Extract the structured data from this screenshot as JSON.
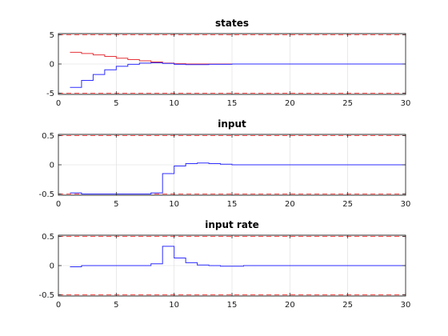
{
  "colors": {
    "bound": "#ff4d4d",
    "state_red": "#e6333a",
    "state_blue": "#2e2eff",
    "input_blue": "#2e2eff"
  },
  "chart_data": [
    {
      "type": "line",
      "title": "states",
      "xlim": [
        0,
        30
      ],
      "ylim": [
        -5.2,
        5.2
      ],
      "xticks": [
        0,
        5,
        10,
        15,
        20,
        25,
        30
      ],
      "yticks": [
        -5,
        0,
        5
      ],
      "ytick_labels": [
        "-5",
        "0",
        "5"
      ],
      "grid": true,
      "step": true,
      "bounds": [
        5,
        -5
      ],
      "series": [
        {
          "color": "#e6333a",
          "x": [
            1,
            2,
            3,
            4,
            5,
            6,
            7,
            8,
            9,
            10,
            11,
            12,
            13,
            14,
            15,
            16,
            17,
            18,
            19,
            20,
            21,
            22,
            23,
            24,
            25,
            26,
            27,
            28,
            29,
            30
          ],
          "y": [
            2.0,
            1.8,
            1.55,
            1.3,
            1.0,
            0.75,
            0.55,
            0.35,
            0.15,
            0.05,
            0.0,
            0.0,
            0.0,
            0.0,
            0.0,
            0.0,
            0.0,
            0.0,
            0.0,
            0.0,
            0.0,
            0.0,
            0.0,
            0.0,
            0.0,
            0.0,
            0.0,
            0.0,
            0.0,
            0.0
          ]
        },
        {
          "color": "#2e2eff",
          "x": [
            1,
            2,
            3,
            4,
            5,
            6,
            7,
            8,
            9,
            10,
            11,
            12,
            13,
            14,
            15,
            16,
            17,
            18,
            19,
            20,
            21,
            22,
            23,
            24,
            25,
            26,
            27,
            28,
            29,
            30
          ],
          "y": [
            -4.0,
            -2.8,
            -1.8,
            -1.0,
            -0.4,
            -0.05,
            0.15,
            0.2,
            0.1,
            -0.05,
            -0.1,
            -0.1,
            -0.05,
            -0.05,
            0.0,
            0.0,
            0.0,
            0.0,
            0.0,
            0.0,
            0.0,
            0.0,
            0.0,
            0.0,
            0.0,
            0.0,
            0.0,
            0.0,
            0.0,
            0.0
          ]
        }
      ]
    },
    {
      "type": "line",
      "title": "input",
      "xlim": [
        0,
        30
      ],
      "ylim": [
        -0.52,
        0.52
      ],
      "xticks": [
        0,
        5,
        10,
        15,
        20,
        25,
        30
      ],
      "yticks": [
        -0.5,
        0,
        0.5
      ],
      "ytick_labels": [
        "-0.5",
        "0",
        "0.5"
      ],
      "grid": true,
      "step": true,
      "bounds": [
        0.5,
        -0.5
      ],
      "series": [
        {
          "color": "#2e2eff",
          "x": [
            1,
            2,
            3,
            4,
            5,
            6,
            7,
            8,
            9,
            10,
            11,
            12,
            13,
            14,
            15,
            16,
            17,
            18,
            19,
            20,
            21,
            22,
            23,
            24,
            25,
            26,
            27,
            28,
            29,
            30
          ],
          "y": [
            -0.48,
            -0.5,
            -0.5,
            -0.5,
            -0.5,
            -0.5,
            -0.5,
            -0.48,
            -0.15,
            -0.02,
            0.02,
            0.03,
            0.02,
            0.01,
            0.0,
            0.0,
            0.0,
            0.0,
            0.0,
            0.0,
            0.0,
            0.0,
            0.0,
            0.0,
            0.0,
            0.0,
            0.0,
            0.0,
            0.0,
            0.0
          ]
        }
      ]
    },
    {
      "type": "line",
      "title": "input rate",
      "xlim": [
        0,
        30
      ],
      "ylim": [
        -0.52,
        0.52
      ],
      "xticks": [
        0,
        5,
        10,
        15,
        20,
        25,
        30
      ],
      "yticks": [
        -0.5,
        0,
        0.5
      ],
      "ytick_labels": [
        "-0.5",
        "0",
        "0.5"
      ],
      "grid": true,
      "step": true,
      "bounds": [
        0.5,
        -0.5
      ],
      "series": [
        {
          "color": "#2e2eff",
          "x": [
            1,
            2,
            3,
            4,
            5,
            6,
            7,
            8,
            9,
            10,
            11,
            12,
            13,
            14,
            15,
            16,
            17,
            18,
            19,
            20,
            21,
            22,
            23,
            24,
            25,
            26,
            27,
            28,
            29,
            30
          ],
          "y": [
            -0.02,
            0.0,
            0.0,
            0.0,
            0.0,
            0.0,
            0.0,
            0.03,
            0.33,
            0.13,
            0.05,
            0.01,
            0.0,
            -0.01,
            -0.01,
            0.0,
            0.0,
            0.0,
            0.0,
            0.0,
            0.0,
            0.0,
            0.0,
            0.0,
            0.0,
            0.0,
            0.0,
            0.0,
            0.0,
            0.0
          ]
        }
      ]
    }
  ]
}
